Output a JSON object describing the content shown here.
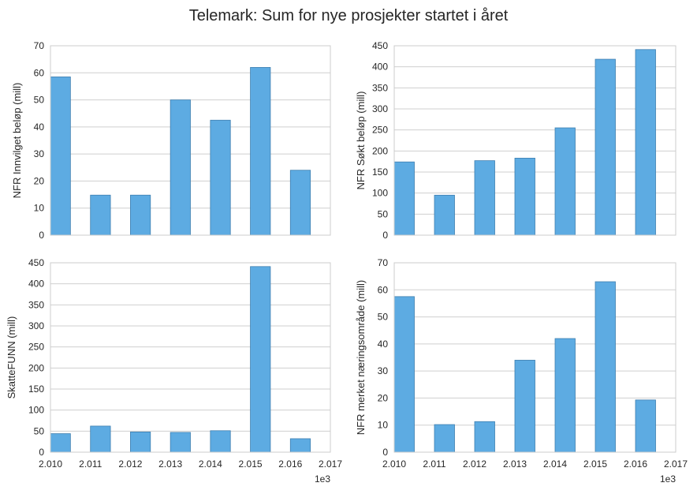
{
  "title": "Telemark: Sum for nye prosjekter startet i året",
  "colors": {
    "bar": "#5dabe2",
    "grid": "#cfcfcf",
    "frame": "#cccccc"
  },
  "chart_data": [
    {
      "type": "bar",
      "ylabel": "NFR Innvilget beløp (mill)",
      "x": [
        2010,
        2011,
        2012,
        2013,
        2014,
        2015,
        2016
      ],
      "values": [
        58.5,
        14.8,
        14.8,
        50.0,
        42.5,
        62.0,
        24.0
      ],
      "ylim": [
        0,
        70
      ],
      "yticks": [
        0,
        10,
        20,
        30,
        40,
        50,
        60,
        70
      ],
      "xlim": [
        2010,
        2017
      ],
      "xtick_labels": [],
      "x_offset_label": "",
      "grid": true
    },
    {
      "type": "bar",
      "ylabel": "NFR Søkt beløp (mill)",
      "x": [
        2010,
        2011,
        2012,
        2013,
        2014,
        2015,
        2016
      ],
      "values": [
        174,
        95,
        177,
        183,
        255,
        418,
        441
      ],
      "ylim": [
        0,
        450
      ],
      "yticks": [
        0,
        50,
        100,
        150,
        200,
        250,
        300,
        350,
        400,
        450
      ],
      "xlim": [
        2010,
        2017
      ],
      "xtick_labels": [],
      "x_offset_label": "",
      "grid": true
    },
    {
      "type": "bar",
      "ylabel": "SkatteFUNN (mill)",
      "x": [
        2010,
        2011,
        2012,
        2013,
        2014,
        2015,
        2016
      ],
      "values": [
        44,
        62,
        48,
        47,
        51,
        441,
        32
      ],
      "ylim": [
        0,
        450
      ],
      "yticks": [
        0,
        50,
        100,
        150,
        200,
        250,
        300,
        350,
        400,
        450
      ],
      "xlim": [
        2010,
        2017
      ],
      "xtick_labels": [
        "2.010",
        "2.011",
        "2.012",
        "2.013",
        "2.014",
        "2.015",
        "2.016",
        "2.017"
      ],
      "x_offset_label": "1e3",
      "grid": true
    },
    {
      "type": "bar",
      "ylabel": "NFR merket næringsområde (mill)",
      "x": [
        2010,
        2011,
        2012,
        2013,
        2014,
        2015,
        2016
      ],
      "values": [
        57.5,
        10.2,
        11.3,
        34.0,
        42.0,
        63.0,
        19.3
      ],
      "ylim": [
        0,
        70
      ],
      "yticks": [
        0,
        10,
        20,
        30,
        40,
        50,
        60,
        70
      ],
      "xlim": [
        2010,
        2017
      ],
      "xtick_labels": [
        "2.010",
        "2.011",
        "2.012",
        "2.013",
        "2.014",
        "2.015",
        "2.016",
        "2.017"
      ],
      "x_offset_label": "1e3",
      "grid": true
    }
  ]
}
